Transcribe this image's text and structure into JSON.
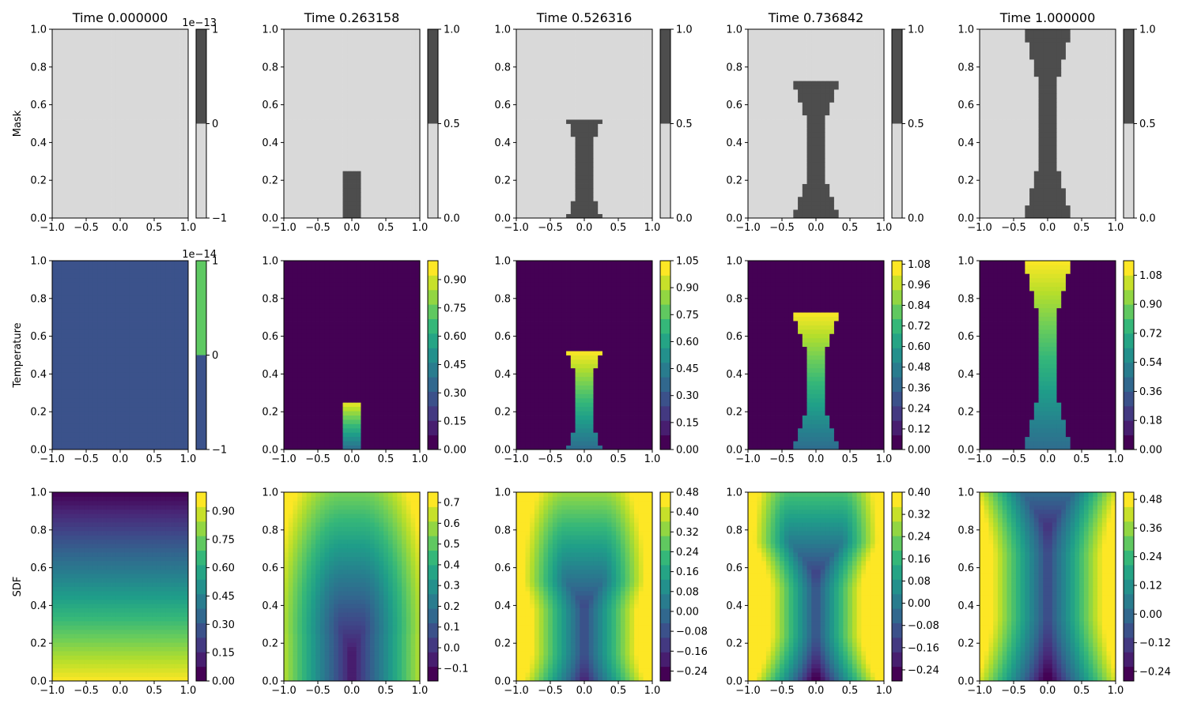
{
  "figure": {
    "row_labels": [
      "Mask",
      "Temperature",
      "SDF"
    ],
    "column_titles": [
      "Time 0.000000",
      "Time 0.263158",
      "Time 0.526316",
      "Time 0.736842",
      "Time 1.000000"
    ]
  },
  "chart_data": {
    "type": "heatmap",
    "layout": "3 rows x 5 columns of filled contour maps with colorbars",
    "xlim": [
      -1.0,
      1.0
    ],
    "ylim": [
      0.0,
      1.0
    ],
    "x_ticks": [
      "−1.0",
      "−0.5",
      "0.0",
      "0.5",
      "1.0"
    ],
    "y_ticks": [
      "0.0",
      "0.2",
      "0.4",
      "0.6",
      "0.8",
      "1.0"
    ],
    "times": [
      0.0,
      0.263158,
      0.526316,
      0.736842,
      1.0
    ],
    "front_height": [
      0.0,
      0.26,
      0.52,
      0.73,
      1.0
    ],
    "mask_colors": {
      "inside": "#4d4d4d",
      "outside": "#d9d9d9"
    },
    "colormap": "viridis",
    "panels": [
      {
        "row": "Mask",
        "time": "Time 0.000000",
        "colorbar": {
          "ticks": [
            "1",
            "0",
            "−1"
          ],
          "offset": "1e−13",
          "range": [
            -1,
            1
          ]
        }
      },
      {
        "row": "Mask",
        "time": "Time 0.263158",
        "colorbar": {
          "ticks": [
            "1.0",
            "0.5",
            "0.0"
          ],
          "range": [
            0,
            1
          ]
        }
      },
      {
        "row": "Mask",
        "time": "Time 0.526316",
        "colorbar": {
          "ticks": [
            "1.0",
            "0.5",
            "0.0"
          ],
          "range": [
            0,
            1
          ]
        }
      },
      {
        "row": "Mask",
        "time": "Time 0.736842",
        "colorbar": {
          "ticks": [
            "1.0",
            "0.5",
            "0.0"
          ],
          "range": [
            0,
            1
          ]
        }
      },
      {
        "row": "Mask",
        "time": "Time 1.000000",
        "colorbar": {
          "ticks": [
            "1.0",
            "0.5",
            "0.0"
          ],
          "range": [
            0,
            1
          ]
        }
      },
      {
        "row": "Temperature",
        "time": "Time 0.000000",
        "colorbar": {
          "ticks": [
            "1",
            "0",
            "−1"
          ],
          "offset": "1e−14",
          "range": [
            -1,
            1
          ]
        }
      },
      {
        "row": "Temperature",
        "time": "Time 0.263158",
        "colorbar": {
          "ticks": [
            "0.90",
            "0.75",
            "0.60",
            "0.45",
            "0.30",
            "0.15",
            "0.00"
          ],
          "range": [
            0,
            1.0
          ]
        }
      },
      {
        "row": "Temperature",
        "time": "Time 0.526316",
        "colorbar": {
          "ticks": [
            "1.05",
            "0.90",
            "0.75",
            "0.60",
            "0.45",
            "0.30",
            "0.15",
            "0.00"
          ],
          "range": [
            0,
            1.05
          ]
        }
      },
      {
        "row": "Temperature",
        "time": "Time 0.736842",
        "colorbar": {
          "ticks": [
            "1.08",
            "0.96",
            "0.84",
            "0.72",
            "0.60",
            "0.48",
            "0.36",
            "0.24",
            "0.12",
            "0.00"
          ],
          "range": [
            0,
            1.1
          ]
        }
      },
      {
        "row": "Temperature",
        "time": "Time 1.000000",
        "colorbar": {
          "ticks": [
            "1.08",
            "0.90",
            "0.72",
            "0.54",
            "0.36",
            "0.18",
            "0.00"
          ],
          "range": [
            0,
            1.17
          ]
        }
      },
      {
        "row": "SDF",
        "time": "Time 0.000000",
        "colorbar": {
          "ticks": [
            "0.90",
            "0.75",
            "0.60",
            "0.45",
            "0.30",
            "0.15",
            "0.00"
          ],
          "range": [
            0,
            1.0
          ]
        }
      },
      {
        "row": "SDF",
        "time": "Time 0.263158",
        "colorbar": {
          "ticks": [
            "0.7",
            "0.6",
            "0.5",
            "0.4",
            "0.3",
            "0.2",
            "0.1",
            "0.0",
            "−0.1"
          ],
          "range": [
            -0.16,
            0.75
          ]
        }
      },
      {
        "row": "SDF",
        "time": "Time 0.526316",
        "colorbar": {
          "ticks": [
            "0.48",
            "0.40",
            "0.32",
            "0.24",
            "0.16",
            "0.08",
            "0.00",
            "−0.08",
            "−0.16",
            "−0.24"
          ],
          "range": [
            -0.28,
            0.48
          ]
        }
      },
      {
        "row": "SDF",
        "time": "Time 0.736842",
        "colorbar": {
          "ticks": [
            "0.40",
            "0.32",
            "0.24",
            "0.16",
            "0.08",
            "0.00",
            "−0.08",
            "−0.16",
            "−0.24"
          ],
          "range": [
            -0.28,
            0.4
          ]
        }
      },
      {
        "row": "SDF",
        "time": "Time 1.000000",
        "colorbar": {
          "ticks": [
            "0.48",
            "0.36",
            "0.24",
            "0.12",
            "0.00",
            "−0.12",
            "−0.24"
          ],
          "range": [
            -0.28,
            0.51
          ]
        }
      }
    ]
  }
}
